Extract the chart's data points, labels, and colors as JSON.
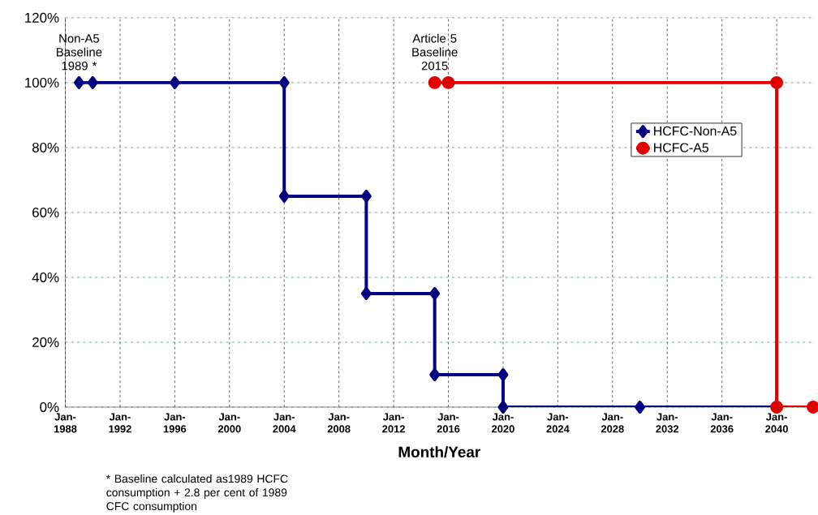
{
  "chart_data": {
    "type": "line",
    "xlabel": "Month/Year",
    "xlim": [
      "1988-01",
      "2042-09"
    ],
    "xticks": [
      {
        "value": "1988-01",
        "label": "Jan-1988"
      },
      {
        "value": "1992-01",
        "label": "Jan-1992"
      },
      {
        "value": "1996-01",
        "label": "Jan-1996"
      },
      {
        "value": "2000-01",
        "label": "Jan-2000"
      },
      {
        "value": "2004-01",
        "label": "Jan-2004"
      },
      {
        "value": "2008-01",
        "label": "Jan-2008"
      },
      {
        "value": "2012-01",
        "label": "Jan-2012"
      },
      {
        "value": "2016-01",
        "label": "Jan-2016"
      },
      {
        "value": "2020-01",
        "label": "Jan-2020"
      },
      {
        "value": "2024-01",
        "label": "Jan-2024"
      },
      {
        "value": "2028-01",
        "label": "Jan-2028"
      },
      {
        "value": "2032-01",
        "label": "Jan-2032"
      },
      {
        "value": "2036-01",
        "label": "Jan-2036"
      },
      {
        "value": "2040-01",
        "label": "Jan-2040"
      }
    ],
    "ylim": [
      0,
      120
    ],
    "yticks": [
      {
        "value": 0,
        "label": "0%"
      },
      {
        "value": 20,
        "label": "20%"
      },
      {
        "value": 40,
        "label": "40%"
      },
      {
        "value": 60,
        "label": "60%"
      },
      {
        "value": 80,
        "label": "80%"
      },
      {
        "value": 100,
        "label": "100%"
      },
      {
        "value": 120,
        "label": "120%"
      }
    ],
    "series": [
      {
        "name": "HCFC-Non-A5",
        "color": "#000080",
        "marker": "diamond",
        "x": [
          "1989-01",
          "1990-01",
          "1996-01",
          "2004-01",
          "2004-01",
          "2010-01",
          "2010-01",
          "2015-01",
          "2015-01",
          "2020-01",
          "2020-01",
          "2030-01",
          "2040-01"
        ],
        "values": [
          100,
          100,
          100,
          100,
          65,
          65,
          35,
          35,
          10,
          10,
          0,
          0,
          0
        ]
      },
      {
        "name": "HCFC-A5",
        "color": "#e00000",
        "marker": "circle",
        "x": [
          "2015-01",
          "2016-01",
          "2040-01",
          "2040-01",
          "2042-09"
        ],
        "values": [
          100,
          100,
          100,
          0,
          0
        ]
      }
    ],
    "grid": true,
    "legend": "top right",
    "annotations": [
      {
        "text": "Non-A5 Baseline 1989 *",
        "x": "1989-01",
        "y": 100
      },
      {
        "text": "Article 5 Baseline 2015",
        "x": "2015-01",
        "y": 100
      },
      "* Baseline calculated as1989 HCFC consumption + 2.8 per cent of 1989 CFC consumption"
    ]
  }
}
